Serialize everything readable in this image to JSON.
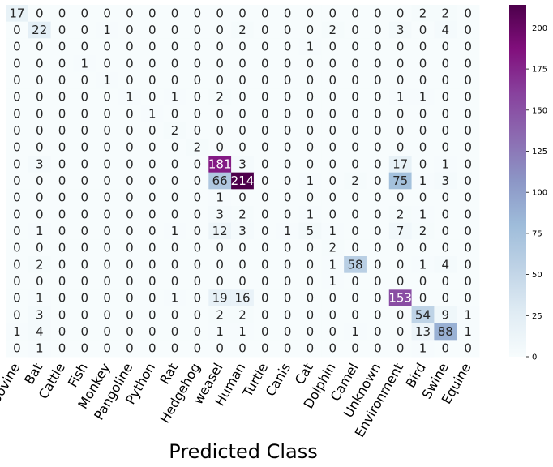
{
  "chart_data": {
    "type": "heatmap",
    "title": "",
    "xlabel": "Predicted Class",
    "ylabel": "",
    "x_categories": [
      "Bovine",
      "Bat",
      "Cattle",
      "Fish",
      "Monkey",
      "Pangoline",
      "Python",
      "Rat",
      "Hedgehog",
      "weasel",
      "Human",
      "Turtle",
      "Canis",
      "Cat",
      "Dolphin",
      "Camel",
      "Unknown",
      "Environment",
      "Bird",
      "Swine",
      "Equine"
    ],
    "matrix": [
      [
        17,
        0,
        0,
        0,
        0,
        0,
        0,
        0,
        0,
        0,
        0,
        0,
        0,
        0,
        0,
        0,
        0,
        0,
        2,
        2,
        0
      ],
      [
        0,
        22,
        0,
        0,
        1,
        0,
        0,
        0,
        0,
        0,
        2,
        0,
        0,
        0,
        2,
        0,
        0,
        3,
        0,
        4,
        0
      ],
      [
        0,
        0,
        0,
        0,
        0,
        0,
        0,
        0,
        0,
        0,
        0,
        0,
        0,
        1,
        0,
        0,
        0,
        0,
        0,
        0,
        0
      ],
      [
        0,
        0,
        0,
        1,
        0,
        0,
        0,
        0,
        0,
        0,
        0,
        0,
        0,
        0,
        0,
        0,
        0,
        0,
        0,
        0,
        0
      ],
      [
        0,
        0,
        0,
        0,
        1,
        0,
        0,
        0,
        0,
        0,
        0,
        0,
        0,
        0,
        0,
        0,
        0,
        0,
        0,
        0,
        0
      ],
      [
        0,
        0,
        0,
        0,
        0,
        1,
        0,
        1,
        0,
        2,
        0,
        0,
        0,
        0,
        0,
        0,
        0,
        1,
        1,
        0,
        0
      ],
      [
        0,
        0,
        0,
        0,
        0,
        0,
        1,
        0,
        0,
        0,
        0,
        0,
        0,
        0,
        0,
        0,
        0,
        0,
        0,
        0,
        0
      ],
      [
        0,
        0,
        0,
        0,
        0,
        0,
        0,
        2,
        0,
        0,
        0,
        0,
        0,
        0,
        0,
        0,
        0,
        0,
        0,
        0,
        0
      ],
      [
        0,
        0,
        0,
        0,
        0,
        0,
        0,
        0,
        2,
        0,
        0,
        0,
        0,
        0,
        0,
        0,
        0,
        0,
        0,
        0,
        0
      ],
      [
        0,
        3,
        0,
        0,
        0,
        0,
        0,
        0,
        0,
        181,
        3,
        0,
        0,
        0,
        0,
        0,
        0,
        17,
        0,
        1,
        0
      ],
      [
        0,
        0,
        0,
        0,
        0,
        0,
        0,
        0,
        0,
        66,
        214,
        0,
        0,
        1,
        0,
        2,
        0,
        75,
        1,
        3,
        0
      ],
      [
        0,
        0,
        0,
        0,
        0,
        0,
        0,
        0,
        0,
        1,
        0,
        0,
        0,
        0,
        0,
        0,
        0,
        0,
        0,
        0,
        0
      ],
      [
        0,
        0,
        0,
        0,
        0,
        0,
        0,
        0,
        0,
        3,
        2,
        0,
        0,
        1,
        0,
        0,
        0,
        2,
        1,
        0,
        0
      ],
      [
        0,
        1,
        0,
        0,
        0,
        0,
        0,
        1,
        0,
        12,
        3,
        0,
        1,
        5,
        1,
        0,
        0,
        7,
        2,
        0,
        0
      ],
      [
        0,
        0,
        0,
        0,
        0,
        0,
        0,
        0,
        0,
        0,
        0,
        0,
        0,
        0,
        2,
        0,
        0,
        0,
        0,
        0,
        0
      ],
      [
        0,
        2,
        0,
        0,
        0,
        0,
        0,
        0,
        0,
        0,
        0,
        0,
        0,
        0,
        1,
        58,
        0,
        0,
        1,
        4,
        0
      ],
      [
        0,
        0,
        0,
        0,
        0,
        0,
        0,
        0,
        0,
        0,
        0,
        0,
        0,
        0,
        1,
        0,
        0,
        0,
        0,
        0,
        0
      ],
      [
        0,
        1,
        0,
        0,
        0,
        0,
        0,
        1,
        0,
        19,
        16,
        0,
        0,
        0,
        0,
        0,
        0,
        153,
        0,
        0,
        0
      ],
      [
        0,
        3,
        0,
        0,
        0,
        0,
        0,
        0,
        0,
        2,
        2,
        0,
        0,
        0,
        0,
        0,
        0,
        0,
        54,
        9,
        1
      ],
      [
        1,
        4,
        0,
        0,
        0,
        0,
        0,
        0,
        0,
        1,
        1,
        0,
        0,
        0,
        0,
        1,
        0,
        0,
        13,
        88,
        1
      ],
      [
        0,
        1,
        0,
        0,
        0,
        0,
        0,
        0,
        0,
        0,
        0,
        0,
        0,
        0,
        0,
        0,
        0,
        0,
        1,
        0,
        0
      ]
    ],
    "value_range": [
      0,
      214
    ],
    "colormap": "BuPu",
    "colorbar_ticks": [
      0,
      25,
      50,
      75,
      100,
      125,
      150,
      175,
      200
    ],
    "colorbar_ticks_text": [
      "0",
      "25",
      "50",
      "75",
      "100",
      "125",
      "150",
      "175",
      "200"
    ],
    "grid": false,
    "legend": "colorbar-right"
  }
}
